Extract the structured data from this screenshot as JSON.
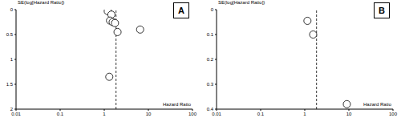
{
  "chart_data": [
    {
      "type": "scatter",
      "panel_label": "A",
      "x_label": "Hazard Ratio",
      "y_label": "SE(log[Hazard Ratio])",
      "log": "x",
      "xlim": [
        0.01,
        100
      ],
      "xticks": [
        0.01,
        0.1,
        1,
        10,
        100
      ],
      "ylim": [
        0,
        2
      ],
      "yticks": [
        0,
        0.5,
        1,
        1.5,
        2
      ],
      "x": [
        1.2,
        1.45,
        1.35,
        1.55,
        1.75,
        2.0,
        6.5,
        1.3
      ],
      "values": [
        0.03,
        0.1,
        0.22,
        0.25,
        0.27,
        0.45,
        0.4,
        1.35
      ],
      "pooled_hr": 1.85,
      "marker": "circle",
      "color": "#000000"
    },
    {
      "type": "scatter",
      "panel_label": "B",
      "x_label": "Hazard Ratio",
      "y_label": "SE(log[Hazard Ratio])",
      "log": "x",
      "xlim": [
        0.01,
        100
      ],
      "xticks": [
        0.01,
        0.1,
        1,
        10,
        100
      ],
      "ylim": [
        0,
        0.4
      ],
      "yticks": [
        0,
        0.1,
        0.2,
        0.3,
        0.4
      ],
      "x": [
        1.15,
        1.55,
        9.0
      ],
      "values": [
        0.045,
        0.1,
        0.38
      ],
      "pooled_hr": 1.85,
      "marker": "circle",
      "color": "#000000"
    }
  ]
}
